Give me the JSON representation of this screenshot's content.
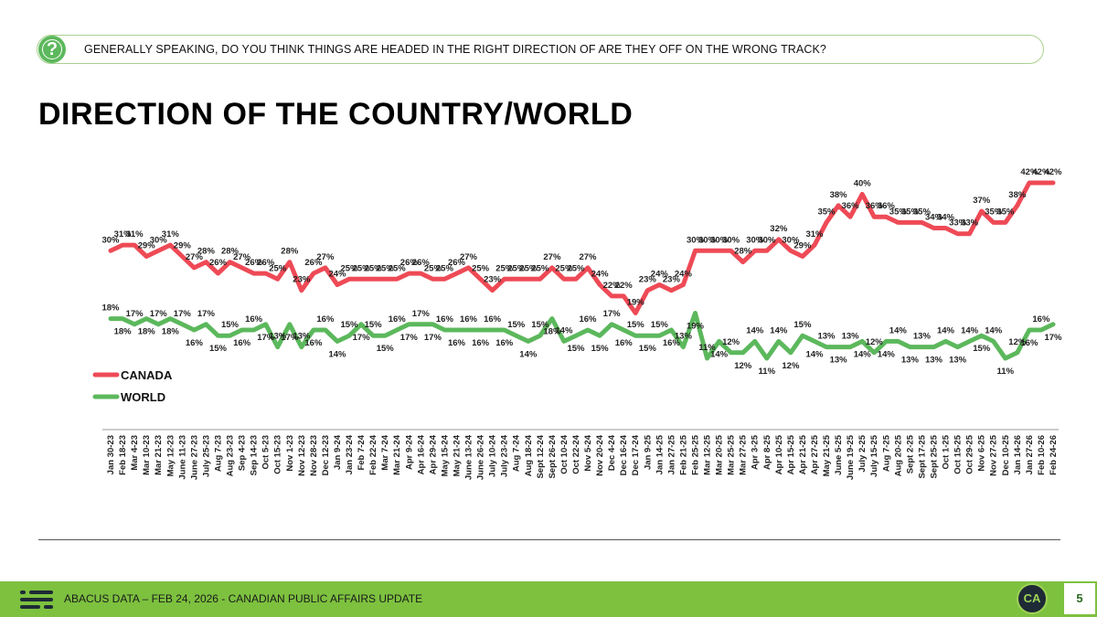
{
  "question": "GENERALLY SPEAKING, DO YOU THINK THINGS ARE HEADED IN THE RIGHT DIRECTION OF ARE THEY OFF ON THE WRONG TRACK?",
  "question_icon": "?",
  "title": "DIRECTION OF THE COUNTRY/WORLD",
  "footer": {
    "text": "ABACUS DATA – FEB 24, 2026 - CANADIAN PUBLIC AFFAIRS UPDATE",
    "badge": "CA",
    "page_number": "5"
  },
  "colors": {
    "canada": "#ee4a56",
    "world": "#5cb85c",
    "footer": "#7dc13f"
  },
  "chart_data": {
    "type": "line",
    "title": "DIRECTION OF THE COUNTRY/WORLD",
    "xlabel": "",
    "ylabel": "",
    "ylim": [
      0,
      45
    ],
    "legend_position": "left",
    "x": [
      "Jan 30-23",
      "Feb 18-23",
      "Mar 4-23",
      "Mar 10-23",
      "Mar 21-23",
      "May 12-23",
      "June 11-23",
      "June 27-23",
      "July 25-23",
      "Aug 7-23",
      "Aug 23-23",
      "Sep 4-23",
      "Sep 14-23",
      "Oct 5-23",
      "Oct 15-23",
      "Nov 1-23",
      "Nov 12-23",
      "Nov 28-23",
      "Dec 12-23",
      "Jan 9-24",
      "Jan 23-24",
      "Feb 7-24",
      "Feb 22-24",
      "Mar 7-24",
      "Mar 21-24",
      "Apr 9-24",
      "Apr 16-24",
      "Apr 29-24",
      "May 15-24",
      "May 21-24",
      "June 13-24",
      "June 26-24",
      "July 10-24",
      "July 23-24",
      "Aug 7-24",
      "Aug 18-24",
      "Sept 12-24",
      "Sept 26-24",
      "Oct 10-24",
      "Oct 22-24",
      "Nov 5-24",
      "Nov 20-24",
      "Dec 4-24",
      "Dec 16-24",
      "Dec 17-24",
      "Jan 9-25",
      "Jan 14-25",
      "Jan 27-25",
      "Feb 21-25",
      "Feb 25-25",
      "Mar 12-25",
      "Mar 20-25",
      "Mar 25-25",
      "Mar 27-25",
      "Apr 3-25",
      "Apr 8-25",
      "Apr 10-25",
      "Apr 15-25",
      "Apr 21-25",
      "Apr 27-25",
      "May 21-25",
      "June 5-25",
      "June 19-25",
      "July 2-25",
      "July 15-25",
      "Aug 7-25",
      "Aug 20-25",
      "Sept 2-25",
      "Sept 17-25",
      "Sept 25-25",
      "Oct 1-25",
      "Oct 15-25",
      "Oct 29-25",
      "Nov 6-25",
      "Nov 27-25",
      "Dec 10-25",
      "Jan 14-26",
      "Jan 27-26",
      "Feb 10-26",
      "Feb 24-26"
    ],
    "series": [
      {
        "name": "CANADA",
        "color": "#ee4a56",
        "values": [
          30,
          31,
          31,
          29,
          30,
          31,
          29,
          27,
          28,
          26,
          28,
          27,
          26,
          26,
          25,
          28,
          23,
          26,
          27,
          24,
          25,
          25,
          25,
          25,
          25,
          26,
          26,
          25,
          25,
          26,
          27,
          25,
          23,
          25,
          25,
          25,
          25,
          27,
          25,
          25,
          27,
          24,
          22,
          22,
          19,
          23,
          24,
          23,
          24,
          30,
          30,
          30,
          30,
          28,
          30,
          30,
          32,
          30,
          29,
          31,
          35,
          38,
          36,
          40,
          36,
          36,
          35,
          35,
          35,
          34,
          34,
          33,
          33,
          37,
          35,
          35,
          38,
          42,
          42,
          42
        ]
      },
      {
        "name": "WORLD",
        "color": "#5cb85c",
        "values": [
          18,
          18,
          17,
          18,
          17,
          18,
          17,
          16,
          17,
          15,
          15,
          16,
          16,
          17,
          13,
          17,
          13,
          16,
          16,
          14,
          15,
          17,
          15,
          15,
          16,
          17,
          17,
          17,
          16,
          16,
          16,
          16,
          16,
          16,
          15,
          14,
          15,
          18,
          14,
          15,
          16,
          15,
          17,
          16,
          15,
          15,
          15,
          16,
          13,
          19,
          11,
          14,
          12,
          12,
          14,
          11,
          14,
          12,
          15,
          14,
          13,
          13,
          13,
          14,
          12,
          14,
          14,
          13,
          13,
          13,
          14,
          13,
          14,
          15,
          14,
          11,
          12,
          16,
          16,
          17
        ]
      }
    ]
  }
}
